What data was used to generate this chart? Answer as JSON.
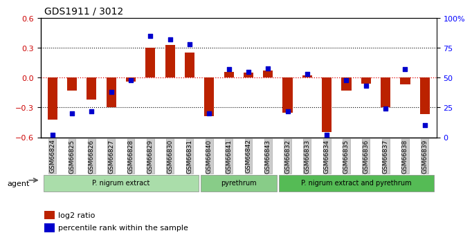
{
  "title": "GDS1911 / 3012",
  "categories": [
    "GSM66824",
    "GSM66825",
    "GSM66826",
    "GSM66827",
    "GSM66828",
    "GSM66829",
    "GSM66830",
    "GSM66831",
    "GSM66840",
    "GSM66841",
    "GSM66842",
    "GSM66843",
    "GSM66832",
    "GSM66833",
    "GSM66834",
    "GSM66835",
    "GSM66836",
    "GSM66837",
    "GSM66838",
    "GSM66839"
  ],
  "log2_ratio": [
    -0.42,
    -0.13,
    -0.22,
    -0.3,
    -0.04,
    0.3,
    0.33,
    0.25,
    -0.39,
    0.06,
    0.05,
    0.07,
    -0.35,
    0.02,
    -0.55,
    -0.13,
    -0.06,
    -0.3,
    -0.07,
    -0.37
  ],
  "percentile": [
    2,
    20,
    22,
    38,
    48,
    85,
    82,
    78,
    20,
    57,
    55,
    58,
    22,
    53,
    2,
    48,
    43,
    24,
    57,
    10
  ],
  "ylim_left": [
    -0.6,
    0.6
  ],
  "ylim_right": [
    0,
    100
  ],
  "yticks_left": [
    -0.6,
    -0.3,
    0.0,
    0.3,
    0.6
  ],
  "yticks_right": [
    0,
    25,
    50,
    75,
    100
  ],
  "ytick_labels_right": [
    "0",
    "25",
    "50",
    "75",
    "100%"
  ],
  "bar_color": "#bb2200",
  "dot_color": "#0000cc",
  "zero_line_color": "#dd0000",
  "grid_color": "#000000",
  "groups": [
    {
      "label": "P. nigrum extract",
      "start": 0,
      "end": 7,
      "color": "#aaddaa"
    },
    {
      "label": "pyrethrum",
      "start": 8,
      "end": 11,
      "color": "#88cc88"
    },
    {
      "label": "P. nigrum extract and pyrethrum",
      "start": 12,
      "end": 19,
      "color": "#55bb55"
    }
  ],
  "agent_label": "agent",
  "legend_bar_label": "log2 ratio",
  "legend_dot_label": "percentile rank within the sample",
  "bg_color": "#ffffff",
  "plot_bg_color": "#ffffff"
}
